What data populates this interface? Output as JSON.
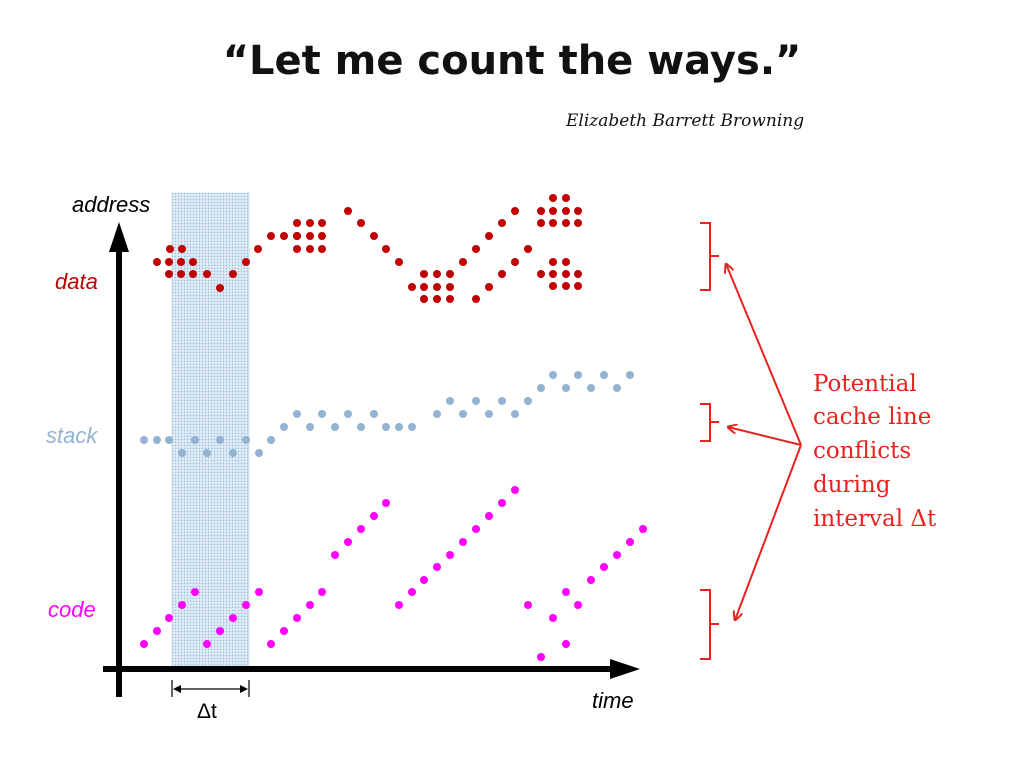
{
  "title": "“Let me count the ways.”",
  "attribution": "Elizabeth Barrett Browning",
  "axes": {
    "y_label": "address",
    "x_label": "time"
  },
  "rows": {
    "data": {
      "label": "data",
      "color": "#c00000"
    },
    "stack": {
      "label": "stack",
      "color": "#93b3d3"
    },
    "code": {
      "label": "code",
      "color": "#ff00ff"
    }
  },
  "interval": {
    "label": "Δt",
    "shade_color": "#c7d9ec"
  },
  "annotation": {
    "lines": [
      "Potential",
      "cache line",
      "conflicts",
      "during",
      "interval Δt"
    ],
    "color": "#e8231f"
  }
}
